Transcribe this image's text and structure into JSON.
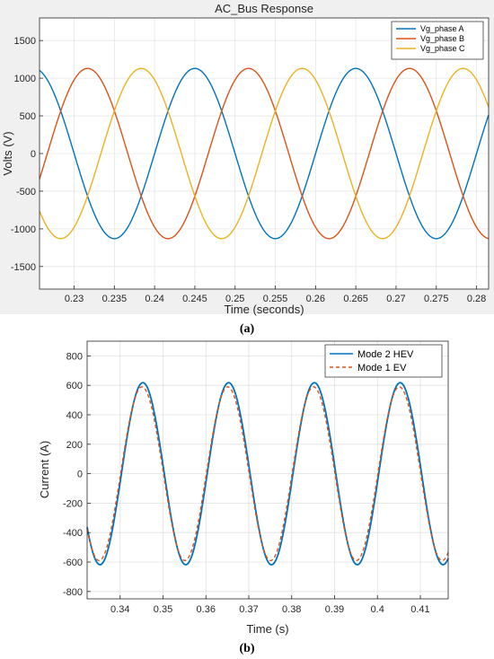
{
  "chart_data": [
    {
      "panel_label": "(a)",
      "type": "line",
      "title": "AC_Bus Response",
      "xlabel": "Time (seconds)",
      "ylabel": "Volts (V)",
      "xlim": [
        0.2257,
        0.2815
      ],
      "ylim": [
        -1800,
        1800
      ],
      "xticks": [
        0.23,
        0.235,
        0.24,
        0.245,
        0.25,
        0.255,
        0.26,
        0.265,
        0.27,
        0.275,
        0.28
      ],
      "xtick_labels": [
        "0.23",
        "0.235",
        "0.24",
        "0.245",
        "0.25",
        "0.255",
        "0.26",
        "0.265",
        "0.27",
        "0.275",
        "0.28"
      ],
      "yticks": [
        -1500,
        -1000,
        -500,
        0,
        500,
        1000,
        1500
      ],
      "ytick_labels": [
        "-1500",
        "-1000",
        "-500",
        "0",
        "500",
        "1000",
        "1500"
      ],
      "grid": true,
      "legend_position": "top-right",
      "series": [
        {
          "name": "Vg_phase A",
          "color": "#0072BD",
          "line": "solid",
          "amplitude": 1130,
          "frequency_hz": 50,
          "peak_time": 0.245
        },
        {
          "name": "Vg_phase B",
          "color": "#D95319",
          "line": "solid",
          "amplitude": 1130,
          "frequency_hz": 50,
          "peak_time": 0.25167
        },
        {
          "name": "Vg_phase C",
          "color": "#EDB120",
          "line": "solid",
          "amplitude": 1130,
          "frequency_hz": 50,
          "peak_time": 0.23833
        }
      ]
    },
    {
      "panel_label": "(b)",
      "type": "line",
      "title": "",
      "xlabel": "Time (s)",
      "ylabel": "Current (A)",
      "xlim": [
        0.3323,
        0.4165
      ],
      "ylim": [
        -850,
        900
      ],
      "xticks": [
        0.34,
        0.35,
        0.36,
        0.37,
        0.38,
        0.39,
        0.4,
        0.41
      ],
      "xtick_labels": [
        "0.34",
        "0.35",
        "0.36",
        "0.37",
        "0.38",
        "0.39",
        "0.4",
        "0.41"
      ],
      "yticks": [
        -800,
        -600,
        -400,
        -200,
        0,
        200,
        400,
        600,
        800
      ],
      "ytick_labels": [
        "-800",
        "-600",
        "-400",
        "-200",
        "0",
        "200",
        "400",
        "600",
        "800"
      ],
      "grid": true,
      "legend_position": "top-right",
      "series": [
        {
          "name": "Mode 2 HEV",
          "color": "#0072BD",
          "line": "solid",
          "amplitude": 618,
          "frequency_hz": 50,
          "peak_time": 0.3453
        },
        {
          "name": "Mode 1 EV",
          "color": "#D95319",
          "line": "dashed",
          "amplitude": 590,
          "frequency_hz": 50,
          "peak_time": 0.3451
        }
      ]
    }
  ]
}
